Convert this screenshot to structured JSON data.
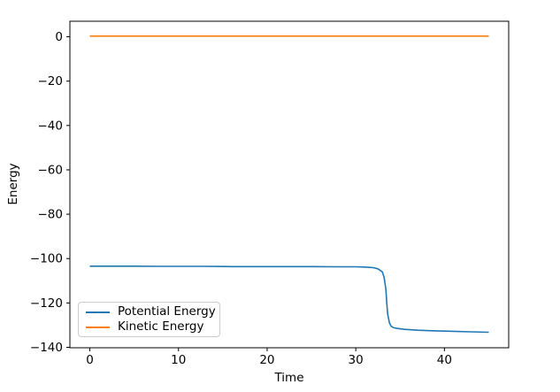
{
  "chart_data": {
    "type": "line",
    "title": "",
    "xlabel": "Time",
    "ylabel": "Energy",
    "xlim": [
      -2.25,
      47.25
    ],
    "ylim": [
      -140.2,
      7.0
    ],
    "grid": false,
    "x_ticks": [
      0,
      10,
      20,
      30,
      40
    ],
    "x_tick_labels": [
      "0",
      "10",
      "20",
      "30",
      "40"
    ],
    "y_ticks": [
      0,
      -20,
      -40,
      -60,
      -80,
      -100,
      -120,
      -140
    ],
    "y_tick_labels": [
      "0",
      "−20",
      "−40",
      "−60",
      "−80",
      "−100",
      "−120",
      "−140"
    ],
    "legend": {
      "position": "lower left"
    },
    "series": [
      {
        "name": "Potential Energy",
        "color": "#1f77b4",
        "x": [
          0,
          2,
          5,
          8,
          10,
          13,
          16,
          19,
          22,
          25,
          28,
          30,
          31,
          32,
          32.5,
          33.0,
          33.2,
          33.4,
          33.5,
          33.6,
          33.8,
          34.0,
          34.3,
          34.7,
          35.5,
          37,
          39,
          41,
          43,
          45
        ],
        "y": [
          -103.4,
          -103.4,
          -103.4,
          -103.5,
          -103.5,
          -103.5,
          -103.6,
          -103.6,
          -103.6,
          -103.6,
          -103.7,
          -103.7,
          -103.8,
          -104.1,
          -104.6,
          -106.0,
          -108.5,
          -114.0,
          -120.0,
          -125.0,
          -129.0,
          -130.5,
          -131.2,
          -131.5,
          -131.9,
          -132.3,
          -132.6,
          -132.8,
          -133.0,
          -133.2
        ]
      },
      {
        "name": "Kinetic Energy",
        "color": "#ff7f0e",
        "x": [
          0,
          5,
          10,
          15,
          20,
          25,
          30,
          35,
          40,
          45
        ],
        "y": [
          0.3,
          0.3,
          0.3,
          0.3,
          0.3,
          0.3,
          0.3,
          0.3,
          0.3,
          0.3
        ]
      }
    ]
  }
}
